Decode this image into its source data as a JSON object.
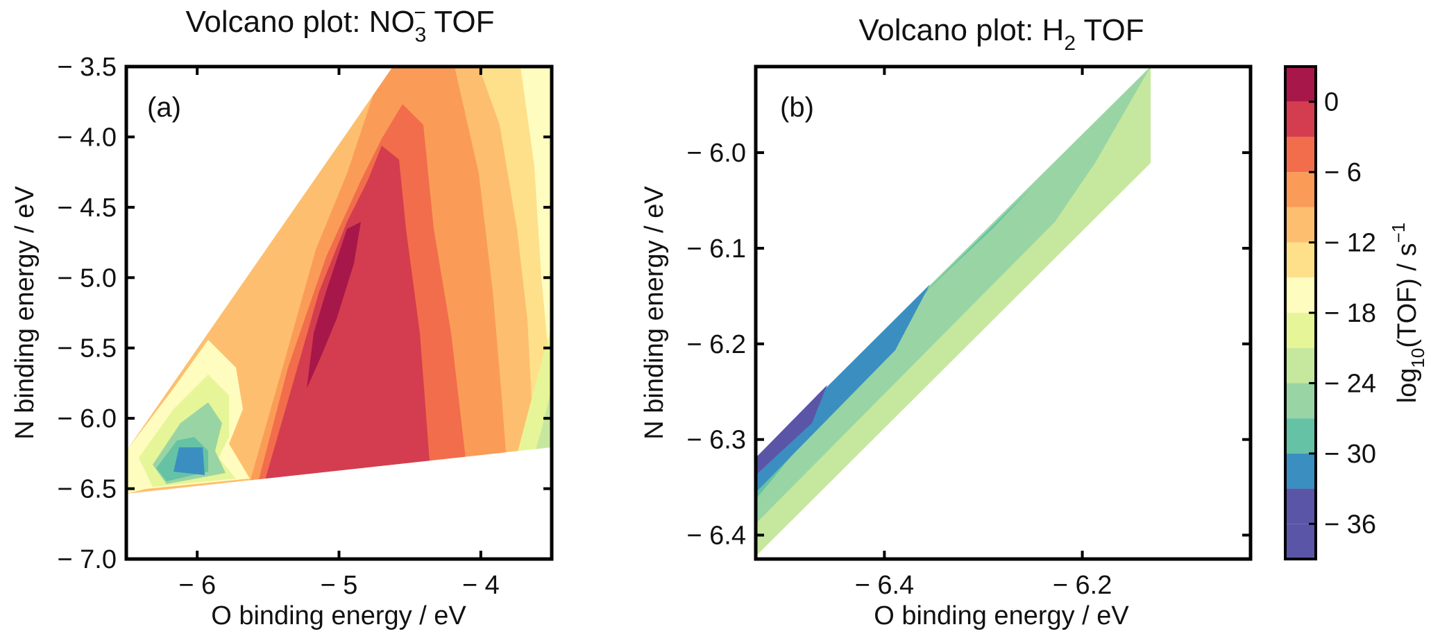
{
  "chart_data": [
    {
      "type": "heatmap",
      "title": "Volcano plot: NO3⁻ TOF",
      "title_main": "Volcano plot: NO",
      "title_sub": "3",
      "title_sup": "−",
      "title_tail": " TOF",
      "panel_label": "(a)",
      "xlabel": "O binding energy / eV",
      "ylabel": "N binding energy / eV",
      "xlim": [
        -6.5,
        -3.5
      ],
      "ylim": [
        -7.0,
        -3.5
      ],
      "xticks": [
        -6,
        -5,
        -4
      ],
      "xtick_labels": [
        "− 6",
        "− 5",
        "− 4"
      ],
      "yticks": [
        -3.5,
        -4.0,
        -4.5,
        -5.0,
        -5.5,
        -6.0,
        -6.5,
        -7.0
      ],
      "ytick_labels": [
        "− 3.5",
        "− 4.0",
        "− 4.5",
        "− 5.0",
        "− 5.5",
        "− 6.0",
        "− 6.5",
        "− 7.0"
      ],
      "domain_upper_edge": [
        [
          -6.5,
          -6.25
        ],
        [
          -4.3,
          -3.5
        ],
        [
          -3.5,
          -3.5
        ]
      ],
      "domain_lower_edge": [
        [
          -6.5,
          -6.55
        ],
        [
          -3.5,
          -6.2
        ]
      ],
      "ridge": {
        "x": [
          -4.55,
          -4.65,
          -4.75,
          -4.85,
          -4.95,
          -5.05,
          -5.15,
          -5.25,
          -5.35,
          -5.45,
          -5.55
        ],
        "y": [
          -3.9,
          -4.3,
          -4.6,
          -4.9,
          -5.2,
          -5.5,
          -5.8,
          -6.05,
          -6.25,
          -6.4,
          -6.5
        ]
      },
      "peak_value": 0
    },
    {
      "type": "heatmap",
      "title": "Volcano plot: H2 TOF",
      "title_main": "Volcano plot: H",
      "title_sub": "2",
      "title_tail": " TOF",
      "panel_label": "(b)",
      "xlabel": "O binding energy / eV",
      "ylabel": "N binding energy / eV",
      "xlim": [
        -6.53,
        -6.03
      ],
      "ylim": [
        -6.425,
        -5.91
      ],
      "xticks": [
        -6.4,
        -6.2
      ],
      "xtick_labels": [
        "− 6.4",
        "− 6.2"
      ],
      "yticks": [
        -6.0,
        -6.1,
        -6.2,
        -6.3,
        -6.4
      ],
      "ytick_labels": [
        "− 6.0",
        "− 6.1",
        "− 6.2",
        "− 6.3",
        "− 6.4"
      ],
      "domain_corners": [
        [
          -6.53,
          -6.32
        ],
        [
          -6.12,
          -5.92
        ],
        [
          -6.12,
          -6.01
        ],
        [
          -6.53,
          -6.42
        ]
      ],
      "band_levels_top_to_bottom": [
        -33,
        -27,
        -21,
        -15
      ]
    }
  ],
  "colorbar": {
    "label_main": "log",
    "label_sub": "10",
    "label_mid": "(TOF) / s",
    "label_sup": "−1",
    "range": [
      -39,
      3
    ],
    "tick_values": [
      0,
      -6,
      -12,
      -18,
      -24,
      -30,
      -36
    ],
    "tick_labels": [
      "0",
      "− 6",
      "− 12",
      "− 18",
      "− 24",
      "− 30",
      "− 36"
    ],
    "levels": [
      3,
      0,
      -3,
      -6,
      -9,
      -12,
      -15,
      -18,
      -21,
      -24,
      -27,
      -30,
      -33,
      -36,
      -39
    ],
    "band_colors": [
      "#a8174a",
      "#d43d4f",
      "#f26d4b",
      "#fa9c58",
      "#fdbf6f",
      "#fee08b",
      "#fefcbf",
      "#e6f598",
      "#c6e89e",
      "#99d5a4",
      "#66c2a5",
      "#3b8fc0",
      "#5b55a8",
      "#5b55a8"
    ]
  }
}
